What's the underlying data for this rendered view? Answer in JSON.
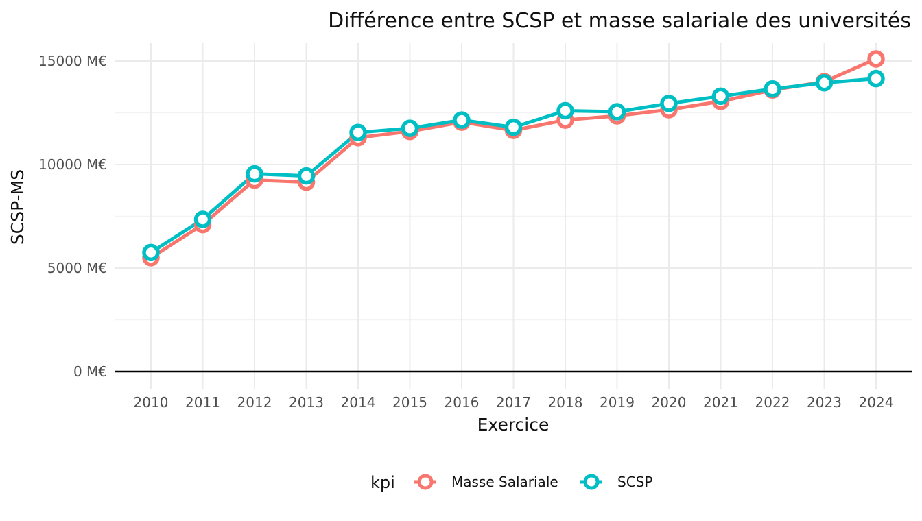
{
  "chart_data": {
    "type": "line",
    "title": "Différence entre SCSP et masse salariale des universités",
    "xlabel": "Exercice",
    "ylabel": "SCSP-MS",
    "categories": [
      2010,
      2011,
      2012,
      2013,
      2014,
      2015,
      2016,
      2017,
      2018,
      2019,
      2020,
      2021,
      2022,
      2023,
      2024
    ],
    "ylim": [
      0,
      15000
    ],
    "y_ticks": [
      0,
      5000,
      10000,
      15000
    ],
    "y_tick_labels": [
      "0 M€",
      "5000 M€",
      "10000 M€",
      "15000 M€"
    ],
    "grid": true,
    "legend": {
      "title": "kpi",
      "position": "bottom"
    },
    "series": [
      {
        "name": "Masse Salariale",
        "color": "#F8766D",
        "values": [
          5500,
          7100,
          9250,
          9150,
          11300,
          11600,
          12050,
          11650,
          12150,
          12350,
          12650,
          13050,
          13600,
          14000,
          15100
        ]
      },
      {
        "name": "SCSP",
        "color": "#00BFC4",
        "values": [
          5750,
          7350,
          9550,
          9450,
          11550,
          11750,
          12150,
          11800,
          12600,
          12550,
          12950,
          13300,
          13650,
          13950,
          14150
        ]
      }
    ]
  }
}
